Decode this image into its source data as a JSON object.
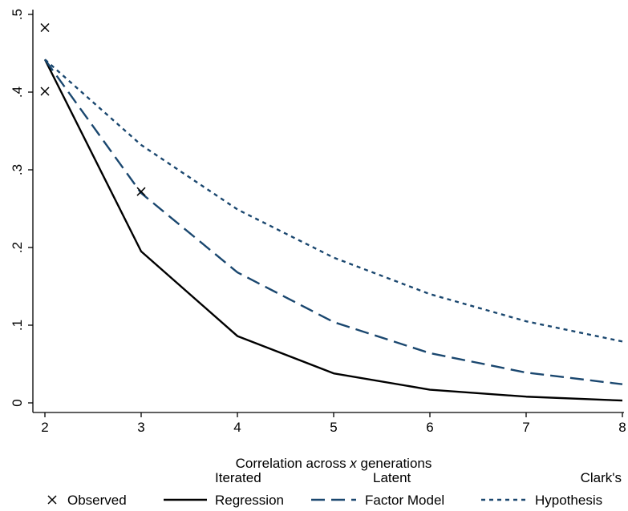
{
  "chart_data": {
    "type": "line",
    "xlabel": "Correlation across x generations",
    "xlabel_parts": [
      "Correlation across ",
      "x",
      " generations"
    ],
    "ylabel": "",
    "xlim": [
      2,
      8
    ],
    "ylim": [
      0,
      0.5
    ],
    "x_ticks": [
      2,
      3,
      4,
      5,
      6,
      7,
      8
    ],
    "x_tick_labels": [
      "2",
      "3",
      "4",
      "5",
      "6",
      "7",
      "8"
    ],
    "y_ticks": [
      0,
      0.1,
      0.2,
      0.3,
      0.4,
      0.5
    ],
    "y_tick_labels": [
      "0",
      ".1",
      ".2",
      ".3",
      ".4",
      ".5"
    ],
    "grid": false,
    "legend_position": "bottom",
    "series": [
      {
        "key": "observed",
        "style": "marker-x",
        "color": "#000000",
        "legend_lines": [
          "",
          "Observed"
        ],
        "x": [
          2,
          2,
          3
        ],
        "y": [
          0.483,
          0.401,
          0.272
        ]
      },
      {
        "key": "iterated",
        "style": "solid",
        "color": "#000000",
        "legend_lines": [
          "Iterated",
          "Regression"
        ],
        "x": [
          2,
          3,
          4,
          5,
          6,
          7,
          8
        ],
        "y": [
          0.442,
          0.195,
          0.086,
          0.038,
          0.017,
          0.008,
          0.003
        ]
      },
      {
        "key": "latent",
        "style": "longdash",
        "color": "#1a476f",
        "legend_lines": [
          "Latent",
          "Factor Model"
        ],
        "x": [
          2,
          3,
          4,
          5,
          6,
          7,
          8
        ],
        "y": [
          0.442,
          0.27,
          0.168,
          0.104,
          0.064,
          0.039,
          0.024
        ]
      },
      {
        "key": "clark",
        "style": "shortdash",
        "color": "#1a476f",
        "legend_lines": [
          "Clark's",
          "Hypothesis"
        ],
        "x": [
          2,
          3,
          4,
          5,
          6,
          7,
          8
        ],
        "y": [
          0.442,
          0.332,
          0.249,
          0.187,
          0.14,
          0.105,
          0.079
        ]
      }
    ]
  }
}
